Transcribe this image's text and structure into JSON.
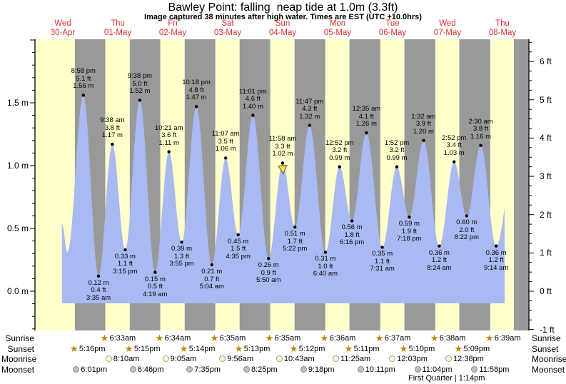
{
  "title": "Bawley Point: falling  neap tide at 1.0m (3.3ft)",
  "subtitle": "Image captured 38 minutes after high water. Times are EST (UTC +10.0hrs)",
  "days": [
    {
      "weekday": "Wed",
      "date": "30-Apr"
    },
    {
      "weekday": "Thu",
      "date": "01-May"
    },
    {
      "weekday": "Fri",
      "date": "02-May"
    },
    {
      "weekday": "Sat",
      "date": "03-May"
    },
    {
      "weekday": "Sun",
      "date": "04-May"
    },
    {
      "weekday": "Mon",
      "date": "05-May"
    },
    {
      "weekday": "Tue",
      "date": "06-May"
    },
    {
      "weekday": "Wed",
      "date": "07-May"
    },
    {
      "weekday": "Thu",
      "date": "08-May"
    }
  ],
  "y_axis_left": {
    "unit": "m",
    "tick_labels": [
      "0.0 m",
      "0.5 m",
      "1.0 m",
      "1.5 m"
    ],
    "values": [
      0.0,
      0.5,
      1.0,
      1.5
    ]
  },
  "y_axis_right": {
    "unit": "ft",
    "tick_labels": [
      "-1 ft",
      "0 ft",
      "1 ft",
      "2 ft",
      "3 ft",
      "4 ft",
      "5 ft",
      "6 ft"
    ],
    "values": [
      -1,
      0,
      1,
      2,
      3,
      4,
      5,
      6
    ]
  },
  "chart_data": {
    "type": "area",
    "title": "Bawley Point: falling  neap tide at 1.0m (3.3ft)",
    "x_axis": "9 days, 30-Apr to 08-May, day labels at noon",
    "ylim_m": [
      -0.31,
      2.0
    ],
    "grid": false,
    "tide_events": [
      {
        "kind": "high",
        "day": 0,
        "time": "8:58 pm",
        "height_m": 1.56,
        "label_ft": "5.1 ft",
        "label_m": "1.56 m"
      },
      {
        "kind": "low",
        "day": 1,
        "time": "3:35 am",
        "height_m": 0.12,
        "label_ft": "0.4 ft",
        "label_m": "0.12 m"
      },
      {
        "kind": "high",
        "day": 1,
        "time": "9:38 am",
        "height_m": 1.17,
        "label_ft": "3.8 ft",
        "label_m": "1.17 m"
      },
      {
        "kind": "low",
        "day": 1,
        "time": "3:15 pm",
        "height_m": 0.33,
        "label_ft": "1.1 ft",
        "label_m": "0.33 m"
      },
      {
        "kind": "high",
        "day": 1,
        "time": "9:38 pm",
        "height_m": 1.52,
        "label_ft": "5.0 ft",
        "label_m": "1.52 m"
      },
      {
        "kind": "low",
        "day": 2,
        "time": "4:19 am",
        "height_m": 0.15,
        "label_ft": "0.5 ft",
        "label_m": "0.15 m"
      },
      {
        "kind": "high",
        "day": 2,
        "time": "10:21 am",
        "height_m": 1.11,
        "label_ft": "3.6 ft",
        "label_m": "1.11 m"
      },
      {
        "kind": "low",
        "day": 2,
        "time": "3:55 pm",
        "height_m": 0.39,
        "label_ft": "1.3 ft",
        "label_m": "0.39 m"
      },
      {
        "kind": "high",
        "day": 2,
        "time": "10:18 pm",
        "height_m": 1.47,
        "label_ft": "4.8 ft",
        "label_m": "1.47 m"
      },
      {
        "kind": "low",
        "day": 3,
        "time": "5:04 am",
        "height_m": 0.21,
        "label_ft": "0.7 ft",
        "label_m": "0.21 m"
      },
      {
        "kind": "high",
        "day": 3,
        "time": "11:07 am",
        "height_m": 1.06,
        "label_ft": "3.5 ft",
        "label_m": "1.06 m"
      },
      {
        "kind": "low",
        "day": 3,
        "time": "4:35 pm",
        "height_m": 0.45,
        "label_ft": "1.5 ft",
        "label_m": "0.45 m"
      },
      {
        "kind": "high",
        "day": 3,
        "time": "11:01 pm",
        "height_m": 1.4,
        "label_ft": "4.6 ft",
        "label_m": "1.40 m"
      },
      {
        "kind": "low",
        "day": 4,
        "time": "5:50 am",
        "height_m": 0.26,
        "label_ft": "0.9 ft",
        "label_m": "0.26 m"
      },
      {
        "kind": "high",
        "day": 4,
        "time": "11:58 am",
        "height_m": 1.02,
        "label_ft": "3.3 ft",
        "label_m": "1.02 m",
        "current": true
      },
      {
        "kind": "low",
        "day": 4,
        "time": "5:22 pm",
        "height_m": 0.51,
        "label_ft": "1.7 ft",
        "label_m": "0.51 m"
      },
      {
        "kind": "high",
        "day": 4,
        "time": "11:47 pm",
        "height_m": 1.32,
        "label_ft": "4.3 ft",
        "label_m": "1.32 m"
      },
      {
        "kind": "low",
        "day": 5,
        "time": "6:40 am",
        "height_m": 0.31,
        "label_ft": "1.0 ft",
        "label_m": "0.31 m"
      },
      {
        "kind": "high",
        "day": 5,
        "time": "12:52 pm",
        "height_m": 0.99,
        "label_ft": "3.2 ft",
        "label_m": "0.99 m"
      },
      {
        "kind": "low",
        "day": 5,
        "time": "6:16 pm",
        "height_m": 0.56,
        "label_ft": "1.8 ft",
        "label_m": "0.56 m"
      },
      {
        "kind": "high",
        "day": 6,
        "time": "12:35 am",
        "height_m": 1.26,
        "label_ft": "4.1 ft",
        "label_m": "1.26 m"
      },
      {
        "kind": "low",
        "day": 6,
        "time": "7:31 am",
        "height_m": 0.35,
        "label_ft": "1.1 ft",
        "label_m": "0.35 m"
      },
      {
        "kind": "high",
        "day": 6,
        "time": "1:52 pm",
        "height_m": 0.99,
        "label_ft": "3.2 ft",
        "label_m": "0.99 m"
      },
      {
        "kind": "low",
        "day": 6,
        "time": "7:18 pm",
        "height_m": 0.59,
        "label_ft": "1.9 ft",
        "label_m": "0.59 m"
      },
      {
        "kind": "high",
        "day": 7,
        "time": "1:32 am",
        "height_m": 1.2,
        "label_ft": "3.9 ft",
        "label_m": "1.20 m"
      },
      {
        "kind": "low",
        "day": 7,
        "time": "8:24 am",
        "height_m": 0.36,
        "label_ft": "1.2 ft",
        "label_m": "0.36 m"
      },
      {
        "kind": "high",
        "day": 7,
        "time": "2:52 pm",
        "height_m": 1.03,
        "label_ft": "3.4 ft",
        "label_m": "1.03 m"
      },
      {
        "kind": "low",
        "day": 7,
        "time": "8:22 pm",
        "height_m": 0.6,
        "label_ft": "2.0 ft",
        "label_m": "0.60 m"
      },
      {
        "kind": "high",
        "day": 8,
        "time": "2:30 am",
        "height_m": 1.16,
        "label_ft": "3.8 ft",
        "label_m": "1.16 m"
      },
      {
        "kind": "low",
        "day": 8,
        "time": "9:14 am",
        "height_m": 0.36,
        "label_ft": "1.2 ft",
        "label_m": "0.36 m"
      }
    ],
    "current_position_marker_time": "11:58 am"
  },
  "astro": {
    "rows": [
      {
        "label": "Sunrise"
      },
      {
        "label": "Sunset"
      },
      {
        "label": "Moonrise"
      },
      {
        "label": "Moonset"
      }
    ],
    "sunrise": [
      {
        "day": 1,
        "time": "6:33am"
      },
      {
        "day": 2,
        "time": "6:34am"
      },
      {
        "day": 3,
        "time": "6:35am"
      },
      {
        "day": 4,
        "time": "6:35am"
      },
      {
        "day": 5,
        "time": "6:36am"
      },
      {
        "day": 6,
        "time": "6:37am"
      },
      {
        "day": 7,
        "time": "6:38am"
      },
      {
        "day": 8,
        "time": "6:39am"
      }
    ],
    "sunset": [
      {
        "day": 0,
        "time": "5:16pm"
      },
      {
        "day": 1,
        "time": "5:15pm"
      },
      {
        "day": 2,
        "time": "5:14pm"
      },
      {
        "day": 3,
        "time": "5:13pm"
      },
      {
        "day": 4,
        "time": "5:12pm"
      },
      {
        "day": 5,
        "time": "5:11pm"
      },
      {
        "day": 6,
        "time": "5:10pm"
      },
      {
        "day": 7,
        "time": "5:09pm"
      }
    ],
    "moonrise": [
      {
        "day": 1,
        "time": "8:10am"
      },
      {
        "day": 2,
        "time": "9:05am"
      },
      {
        "day": 3,
        "time": "9:56am"
      },
      {
        "day": 4,
        "time": "10:43am"
      },
      {
        "day": 5,
        "time": "11:25am"
      },
      {
        "day": 6,
        "time": "12:03pm"
      },
      {
        "day": 7,
        "time": "12:38pm"
      }
    ],
    "moonset": [
      {
        "day": 0,
        "time": "6:01pm"
      },
      {
        "day": 1,
        "time": "6:46pm"
      },
      {
        "day": 2,
        "time": "7:35pm"
      },
      {
        "day": 3,
        "time": "8:25pm"
      },
      {
        "day": 4,
        "time": "9:18pm"
      },
      {
        "day": 5,
        "time": "10:11pm"
      },
      {
        "day": 6,
        "time": "11:04pm"
      },
      {
        "day": 7,
        "time": "11:58pm"
      }
    ],
    "moon_phase": "First Quarter | 1:14pm"
  },
  "colors": {
    "day_band": "#ffffcc",
    "night_band": "#999999",
    "tide_fill": "#a9baf2",
    "day_label_red": "#e03030",
    "star": "#b8860b",
    "marker_yellow": "#f2e03c"
  }
}
